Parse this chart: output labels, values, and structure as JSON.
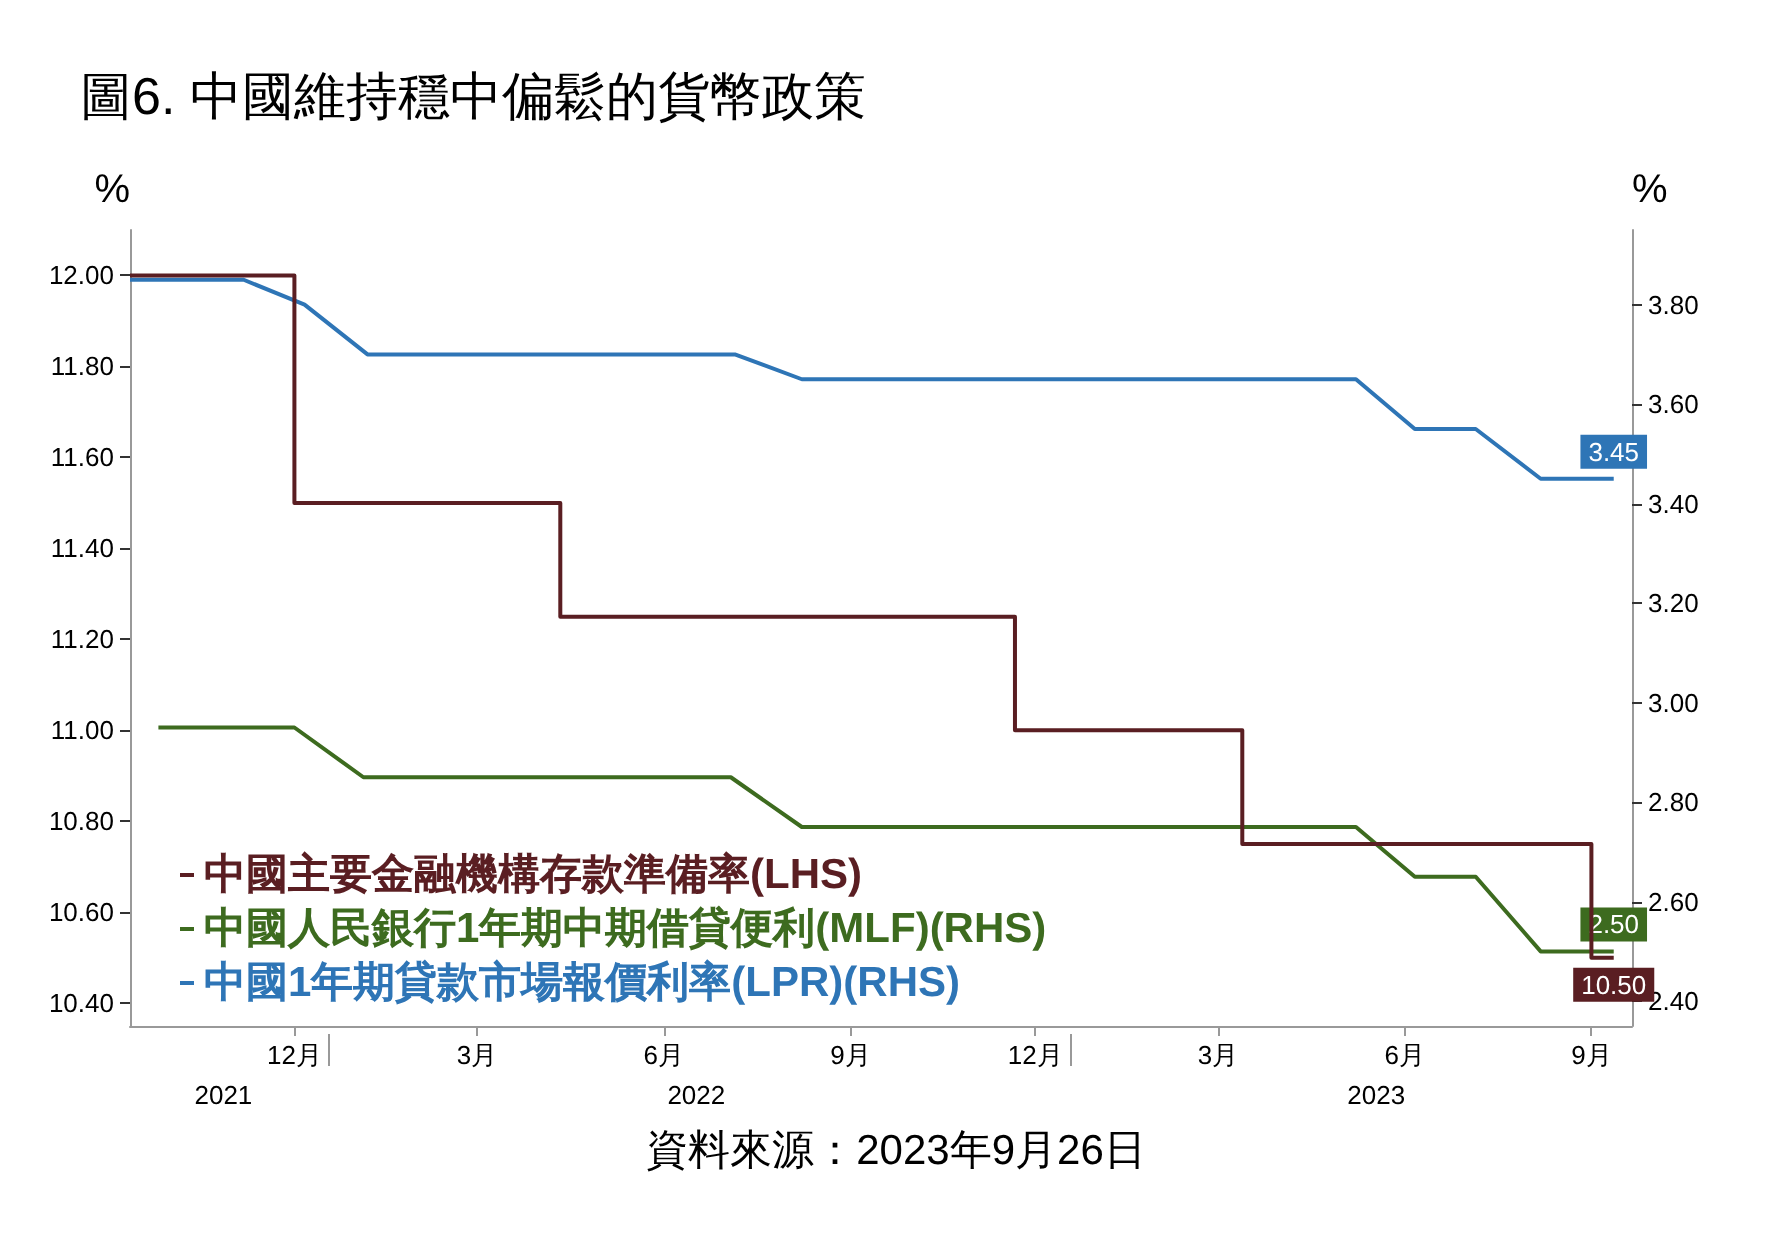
{
  "chart_data": {
    "type": "line",
    "title": "圖6. 中國維持穩中偏鬆的貨幣政策",
    "ylabel": "%",
    "y2label": "%",
    "annotations": [
      "資料來源：2023年9月26日"
    ],
    "xlim": [
      "2021-09-25",
      "2023-10-05"
    ],
    "xticks": [
      {
        "value": "2021-12-15",
        "label": "12月"
      },
      {
        "value": "2022-03-15",
        "label": "3月"
      },
      {
        "value": "2022-06-15",
        "label": "6月"
      },
      {
        "value": "2022-09-15",
        "label": "9月"
      },
      {
        "value": "2022-12-15",
        "label": "12月"
      },
      {
        "value": "2023-03-15",
        "label": "3月"
      },
      {
        "value": "2023-06-15",
        "label": "6月"
      },
      {
        "value": "2023-09-15",
        "label": "9月"
      }
    ],
    "x2lim": [
      "2021-09-25",
      "2023-10-05"
    ],
    "x2ticks": [
      {
        "value": "2021-11-10",
        "label": "2021"
      },
      {
        "value": "2022-01-01",
        "label": null
      },
      {
        "value": "2022-07-01",
        "label": "2022"
      },
      {
        "value": "2023-01-01",
        "label": null
      },
      {
        "value": "2023-06-01",
        "label": "2023"
      }
    ],
    "ylim": [
      10.35,
      12.1
    ],
    "yticks": [
      {
        "value": 10.4,
        "label": "10.40"
      },
      {
        "value": 10.6,
        "label": "10.60"
      },
      {
        "value": 10.8,
        "label": "10.80"
      },
      {
        "value": 11,
        "label": "11.00"
      },
      {
        "value": 11.2,
        "label": "11.20"
      },
      {
        "value": 11.4,
        "label": "11.40"
      },
      {
        "value": 11.6,
        "label": "11.60"
      },
      {
        "value": 11.8,
        "label": "11.80"
      },
      {
        "value": 12,
        "label": "12.00"
      }
    ],
    "y2lim": [
      2.35,
      3.95
    ],
    "y2ticks": [
      {
        "value": 2.4,
        "label": "2.40"
      },
      {
        "value": 2.6,
        "label": "2.60"
      },
      {
        "value": 2.8,
        "label": "2.80"
      },
      {
        "value": 3,
        "label": "3.00"
      },
      {
        "value": 3.2,
        "label": "3.20"
      },
      {
        "value": 3.4,
        "label": "3.40"
      },
      {
        "value": 3.6,
        "label": "3.60"
      },
      {
        "value": 3.8,
        "label": "3.80"
      }
    ],
    "grid": false,
    "legend": "bottom left",
    "marker": "none",
    "line_style": "solid",
    "series": [
      {
        "name": "中國主要金融機構存款準備率(LHS)",
        "type": "step",
        "color": "#5a1e22",
        "x": [
          "2021-09-25",
          "2021-12-15",
          "2022-04-25",
          "2022-12-05",
          "2023-03-27",
          "2023-09-15",
          "2023-09-26"
        ],
        "values": [
          12.0,
          11.5,
          11.25,
          11.0,
          10.75,
          10.5,
          10.5
        ],
        "value_labels": [
          null,
          null,
          null,
          null,
          null,
          null,
          "10.50"
        ]
      },
      {
        "name": "中國人民銀行1年期中期借貸便利(MLF)(RHS)",
        "axis": "y2",
        "color": "#3d6b1f",
        "x": [
          "2021-10-09",
          "2021-12-15",
          "2022-01-18",
          "2022-07-18",
          "2022-08-22",
          "2023-05-22",
          "2023-06-20",
          "2023-07-20",
          "2023-08-21",
          "2023-09-26"
        ],
        "values": [
          2.95,
          2.95,
          2.85,
          2.85,
          2.75,
          2.75,
          2.65,
          2.65,
          2.5,
          2.5
        ],
        "value_labels": [
          null,
          null,
          null,
          null,
          null,
          null,
          null,
          null,
          null,
          "2.50"
        ]
      },
      {
        "name": "中國1年期貸款市場報價利率(LPR)(RHS)",
        "axis": "y2",
        "color": "#2e75b6",
        "x": [
          "2021-09-25",
          "2021-11-20",
          "2021-12-20",
          "2022-01-20",
          "2022-07-20",
          "2022-08-22",
          "2023-05-22",
          "2023-06-20",
          "2023-07-20",
          "2023-08-21",
          "2023-09-26"
        ],
        "values": [
          3.85,
          3.85,
          3.8,
          3.7,
          3.7,
          3.65,
          3.65,
          3.55,
          3.55,
          3.45,
          3.45
        ],
        "value_labels": [
          null,
          null,
          null,
          null,
          null,
          null,
          null,
          null,
          null,
          null,
          "3.45"
        ]
      }
    ]
  }
}
